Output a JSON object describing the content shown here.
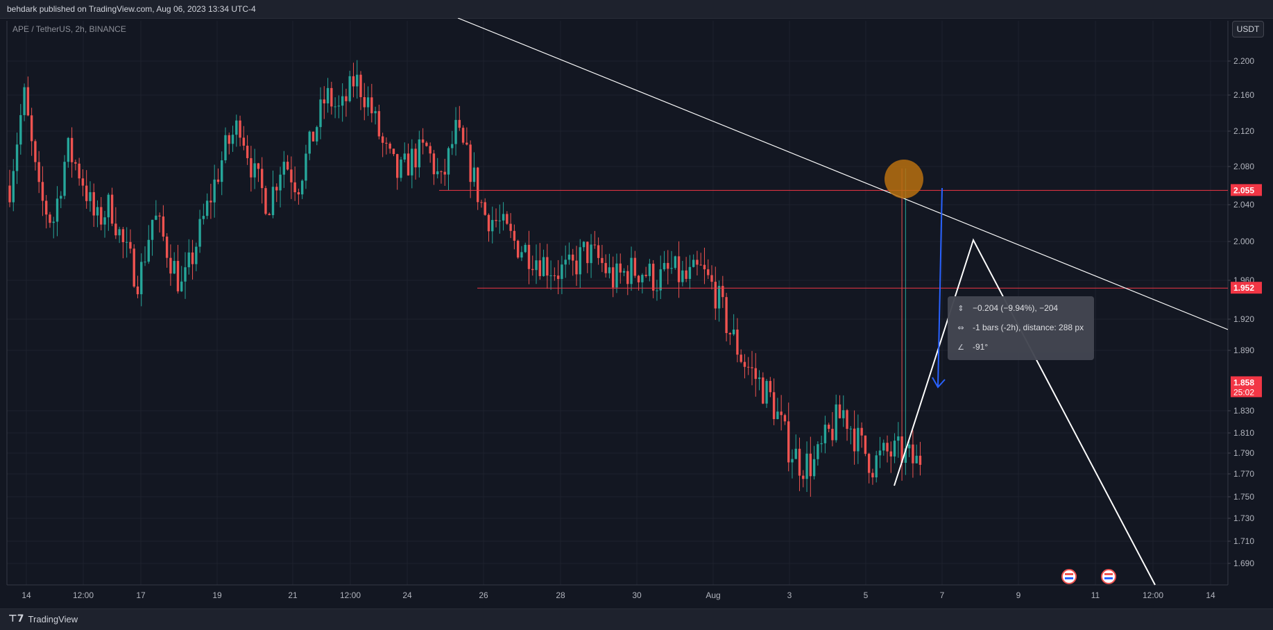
{
  "header": {
    "published": "behdark published on TradingView.com, Aug 06, 2023 13:34 UTC-4",
    "symbol": "APE / TetherUS, 2h, BINANCE",
    "currency_button": "USDT"
  },
  "footer": {
    "logo_text": "TradingView",
    "logo_icon": "tradingview-logo-icon"
  },
  "colors": {
    "background": "#131722",
    "up": "#26a69a",
    "down": "#ef5350",
    "level_line": "#f23645",
    "trend_line": "#ffffff",
    "arrow": "#2962ff",
    "marker": "#b8700f"
  },
  "measure_tooltip": {
    "price_change": "−0.204 (−9.94%), −204",
    "bars": "-1 bars (-2h), distance: 288 px",
    "angle": "-91°"
  },
  "chart_data": {
    "type": "candlestick",
    "timeframe": "2h",
    "ylim": [
      1.67,
      2.24
    ],
    "y_ticks": [
      "2.200",
      "2.160",
      "2.120",
      "2.080",
      "2.040",
      "2.000",
      "1.960",
      "1.920",
      "1.890",
      "1.830",
      "1.810",
      "1.790",
      "1.770",
      "1.750",
      "1.730",
      "1.710",
      "1.690"
    ],
    "x_ticks": [
      "14",
      "12:00",
      "17",
      "19",
      "21",
      "12:00",
      "24",
      "26",
      "28",
      "30",
      "Aug",
      "3",
      "5",
      "7",
      "9",
      "11",
      "12:00",
      "14"
    ],
    "horizontal_levels": [
      {
        "value": 2.055,
        "label": "2.055"
      },
      {
        "value": 1.952,
        "label": "1.952"
      }
    ],
    "last_price": {
      "value": 1.858,
      "label": "1.858",
      "countdown": "25:02"
    },
    "close_path_approx": [
      2.06,
      2.16,
      2.05,
      2.02,
      2.1,
      2.07,
      2.02,
      2.04,
      1.99,
      1.96,
      2.03,
      1.99,
      1.95,
      2.0,
      2.05,
      2.1,
      2.13,
      2.07,
      2.04,
      2.09,
      2.06,
      2.11,
      2.16,
      2.14,
      2.18,
      2.15,
      2.1,
      2.07,
      2.09,
      2.1,
      2.06,
      2.12,
      2.08,
      2.03,
      2.02,
      2.0,
      1.99,
      1.98,
      1.97,
      1.97,
      1.99,
      1.98,
      1.96,
      1.97,
      1.97,
      1.96,
      1.97,
      1.96,
      1.97,
      1.95,
      1.91,
      1.88,
      1.86,
      1.84,
      1.8,
      1.78,
      1.78,
      1.81,
      1.83,
      1.8,
      1.78,
      1.79,
      1.79,
      1.78,
      1.8,
      1.82,
      1.81,
      1.8,
      1.81,
      1.79,
      1.79,
      1.78,
      1.79,
      1.84,
      1.94,
      1.91,
      1.86
    ]
  }
}
